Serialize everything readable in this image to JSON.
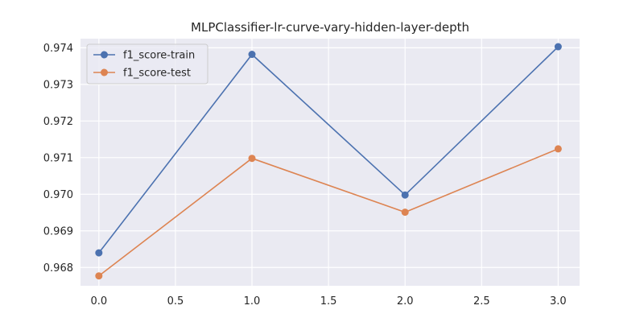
{
  "chart_data": {
    "type": "line",
    "title": "MLPClassifier-lr-curve-vary-hidden-layer-depth",
    "xlabel": "",
    "ylabel": "",
    "x": [
      0,
      1,
      2,
      3
    ],
    "xlim": [
      -0.12,
      3.14
    ],
    "ylim": [
      0.9675,
      0.97425
    ],
    "x_ticks": [
      0,
      0.5,
      1,
      1.5,
      2,
      2.5,
      3
    ],
    "x_tick_labels": [
      "0.0",
      "0.5",
      "1.0",
      "1.5",
      "2.0",
      "2.5",
      "3.0"
    ],
    "y_ticks": [
      0.968,
      0.969,
      0.97,
      0.971,
      0.972,
      0.973,
      0.974
    ],
    "y_tick_labels": [
      "0.968",
      "0.969",
      "0.970",
      "0.971",
      "0.972",
      "0.973",
      "0.974"
    ],
    "grid": true,
    "legend_position": "top-left",
    "background_color": "#eaeaf2",
    "grid_color": "#ffffff",
    "series": [
      {
        "name": "f1_score-train",
        "color": "#4c72b0",
        "values": [
          0.9684,
          0.97382,
          0.96998,
          0.97403
        ]
      },
      {
        "name": "f1_score-test",
        "color": "#dd8452",
        "values": [
          0.96777,
          0.97098,
          0.96951,
          0.97124
        ]
      }
    ]
  }
}
